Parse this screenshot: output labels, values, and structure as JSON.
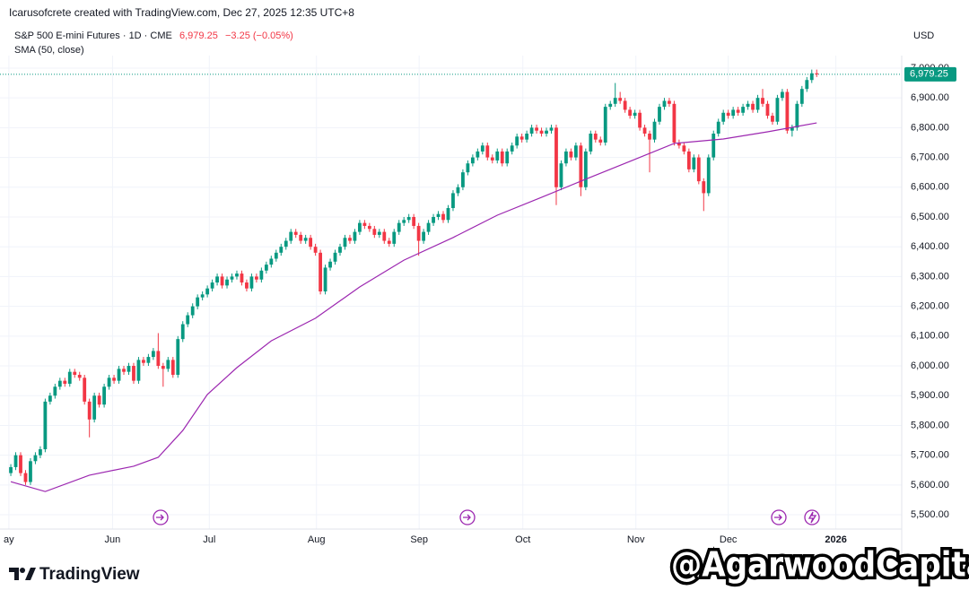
{
  "chart_data": {
    "type": "candlestick",
    "credit": "Icarusofcrete created with TradingView.com, Dec 27, 2025 12:35 UTC+8",
    "title": "S&P 500 E-mini Futures · 1D · CME",
    "last_price": {
      "value": 6979.25,
      "label": "6,979.25"
    },
    "change": {
      "value": -3.25,
      "label": "−3.25 (−0.05%)"
    },
    "currency": "USD",
    "logo": "TradingView",
    "watermark": "@AgarwoodCapital",
    "up_color": "#089981",
    "down_color": "#f23645",
    "grid": true,
    "xlim": [
      -2.2,
      181.3
    ],
    "xticks": [
      {
        "value": -0.4,
        "label": "ay"
      },
      {
        "value": 20.7,
        "label": "Jun"
      },
      {
        "value": 40.4,
        "label": "Jul"
      },
      {
        "value": 62.2,
        "label": "Aug"
      },
      {
        "value": 83.1,
        "label": "Sep"
      },
      {
        "value": 104.2,
        "label": "Oct"
      },
      {
        "value": 127.2,
        "label": "Nov"
      },
      {
        "value": 146,
        "label": "Dec"
      },
      {
        "value": 167.9,
        "label": "2026"
      }
    ],
    "ylim": [
      5452,
      7042
    ],
    "yticks": [
      {
        "value": 5500,
        "label": "5,500.00"
      },
      {
        "value": 5600,
        "label": "5,600.00"
      },
      {
        "value": 5700,
        "label": "5,700.00"
      },
      {
        "value": 5800,
        "label": "5,800.00"
      },
      {
        "value": 5900,
        "label": "5,900.00"
      },
      {
        "value": 6000,
        "label": "6,000.00"
      },
      {
        "value": 6100,
        "label": "6,100.00"
      },
      {
        "value": 6200,
        "label": "6,200.00"
      },
      {
        "value": 6300,
        "label": "6,300.00"
      },
      {
        "value": 6400,
        "label": "6,400.00"
      },
      {
        "value": 6500,
        "label": "6,500.00"
      },
      {
        "value": 6600,
        "label": "6,600.00"
      },
      {
        "value": 6700,
        "label": "6,700.00"
      },
      {
        "value": 6800,
        "label": "6,800.00"
      },
      {
        "value": 6900,
        "label": "6,900.00"
      },
      {
        "value": 7000,
        "label": "7,000.00"
      }
    ],
    "open": [
      5640,
      5660,
      5700,
      5640,
      5610,
      5680,
      5700,
      5720,
      5880,
      5900,
      5930,
      5950,
      5940,
      5980,
      5970,
      5960,
      5880,
      5820,
      5900,
      5870,
      5930,
      5960,
      5950,
      5990,
      5980,
      6000,
      5950,
      6020,
      6010,
      6030,
      6050,
      6000,
      5990,
      6020,
      5970,
      6090,
      6140,
      6170,
      6200,
      6230,
      6240,
      6260,
      6280,
      6300,
      6270,
      6290,
      6300,
      6310,
      6280,
      6260,
      6300,
      6290,
      6320,
      6340,
      6360,
      6380,
      6400,
      6420,
      6450,
      6440,
      6420,
      6430,
      6400,
      6380,
      6250,
      6330,
      6350,
      6380,
      6400,
      6430,
      6420,
      6450,
      6480,
      6470,
      6460,
      6440,
      6450,
      6420,
      6410,
      6450,
      6480,
      6490,
      6500,
      6470,
      6420,
      6450,
      6480,
      6500,
      6510,
      6490,
      6530,
      6580,
      6600,
      6650,
      6680,
      6700,
      6720,
      6740,
      6700,
      6690,
      6720,
      6680,
      6720,
      6740,
      6770,
      6760,
      6780,
      6800,
      6790,
      6780,
      6790,
      6800,
      6600,
      6680,
      6720,
      6700,
      6740,
      6600,
      6720,
      6780,
      6760,
      6750,
      6870,
      6880,
      6900,
      6890,
      6860,
      6840,
      6850,
      6800,
      6780,
      6760,
      6820,
      6870,
      6890,
      6880,
      6750,
      6740,
      6720,
      6660,
      6700,
      6620,
      6580,
      6700,
      6780,
      6820,
      6850,
      6840,
      6860,
      6850,
      6870,
      6880,
      6860,
      6900,
      6880,
      6840,
      6820,
      6900,
      6920,
      6790,
      6800,
      6880,
      6930,
      6960,
      6982.5
    ],
    "high": [
      5670,
      5710,
      5710,
      5650,
      5690,
      5710,
      5730,
      5890,
      5910,
      5940,
      5960,
      5960,
      5990,
      5990,
      5980,
      5970,
      5890,
      5910,
      5910,
      5940,
      5970,
      5970,
      6000,
      6000,
      6010,
      6010,
      6030,
      6030,
      6040,
      6060,
      6110,
      6010,
      6030,
      6030,
      6100,
      6150,
      6180,
      6210,
      6240,
      6250,
      6270,
      6290,
      6310,
      6310,
      6300,
      6310,
      6320,
      6320,
      6290,
      6310,
      6310,
      6330,
      6350,
      6370,
      6390,
      6410,
      6430,
      6460,
      6460,
      6450,
      6440,
      6440,
      6410,
      6390,
      6340,
      6360,
      6390,
      6410,
      6440,
      6440,
      6460,
      6490,
      6490,
      6480,
      6470,
      6460,
      6460,
      6430,
      6460,
      6490,
      6500,
      6510,
      6510,
      6480,
      6460,
      6490,
      6510,
      6520,
      6520,
      6540,
      6590,
      6610,
      6660,
      6690,
      6710,
      6730,
      6750,
      6750,
      6710,
      6730,
      6730,
      6730,
      6750,
      6780,
      6780,
      6790,
      6810,
      6810,
      6800,
      6800,
      6810,
      6810,
      6690,
      6730,
      6730,
      6750,
      6750,
      6730,
      6790,
      6790,
      6770,
      6880,
      6890,
      6950,
      6920,
      6900,
      6870,
      6860,
      6860,
      6810,
      6790,
      6830,
      6880,
      6900,
      6900,
      6890,
      6760,
      6750,
      6730,
      6710,
      6710,
      6630,
      6710,
      6790,
      6830,
      6860,
      6860,
      6870,
      6870,
      6880,
      6890,
      6890,
      6910,
      6930,
      6890,
      6850,
      6910,
      6930,
      6930,
      6810,
      6890,
      6940,
      6970,
      6995,
      6995
    ],
    "low": [
      5630,
      5650,
      5630,
      5600,
      5600,
      5670,
      5690,
      5710,
      5870,
      5890,
      5920,
      5930,
      5930,
      5960,
      5950,
      5870,
      5760,
      5810,
      5860,
      5860,
      5920,
      5940,
      5940,
      5970,
      5970,
      5940,
      5940,
      6000,
      6000,
      6020,
      5990,
      5930,
      5980,
      5960,
      5960,
      6080,
      6130,
      6160,
      6190,
      6220,
      6230,
      6250,
      6270,
      6260,
      6260,
      6280,
      6290,
      6270,
      6250,
      6250,
      6280,
      6280,
      6310,
      6330,
      6350,
      6370,
      6390,
      6410,
      6430,
      6410,
      6410,
      6390,
      6370,
      6240,
      6240,
      6320,
      6340,
      6370,
      6390,
      6410,
      6410,
      6440,
      6460,
      6450,
      6430,
      6430,
      6410,
      6400,
      6400,
      6440,
      6470,
      6480,
      6460,
      6370,
      6410,
      6440,
      6470,
      6490,
      6480,
      6480,
      6520,
      6570,
      6590,
      6640,
      6670,
      6690,
      6710,
      6690,
      6680,
      6680,
      6670,
      6670,
      6710,
      6730,
      6750,
      6750,
      6770,
      6780,
      6770,
      6770,
      6780,
      6540,
      6590,
      6670,
      6690,
      6690,
      6570,
      6590,
      6710,
      6750,
      6740,
      6740,
      6860,
      6870,
      6880,
      6850,
      6830,
      6830,
      6790,
      6770,
      6650,
      6750,
      6810,
      6860,
      6870,
      6740,
      6730,
      6710,
      6650,
      6650,
      6610,
      6520,
      6570,
      6690,
      6770,
      6810,
      6830,
      6830,
      6840,
      6840,
      6860,
      6850,
      6850,
      6870,
      6830,
      6810,
      6810,
      6890,
      6780,
      6770,
      6790,
      6870,
      6920,
      6950,
      6970
    ],
    "close": [
      5660,
      5700,
      5640,
      5610,
      5680,
      5700,
      5720,
      5880,
      5900,
      5930,
      5950,
      5940,
      5980,
      5970,
      5960,
      5880,
      5820,
      5900,
      5870,
      5930,
      5960,
      5950,
      5990,
      5980,
      6000,
      5950,
      6020,
      6010,
      6030,
      6050,
      6000,
      5990,
      6020,
      5970,
      6090,
      6140,
      6170,
      6200,
      6230,
      6240,
      6260,
      6280,
      6300,
      6270,
      6290,
      6300,
      6310,
      6280,
      6260,
      6300,
      6290,
      6320,
      6340,
      6360,
      6380,
      6400,
      6420,
      6450,
      6440,
      6420,
      6430,
      6400,
      6380,
      6250,
      6330,
      6350,
      6380,
      6400,
      6430,
      6420,
      6450,
      6480,
      6470,
      6460,
      6440,
      6450,
      6420,
      6410,
      6450,
      6480,
      6490,
      6500,
      6470,
      6420,
      6450,
      6480,
      6500,
      6510,
      6490,
      6530,
      6580,
      6600,
      6650,
      6680,
      6700,
      6720,
      6740,
      6700,
      6690,
      6720,
      6680,
      6720,
      6740,
      6770,
      6760,
      6780,
      6800,
      6790,
      6780,
      6790,
      6800,
      6600,
      6680,
      6720,
      6700,
      6740,
      6600,
      6720,
      6780,
      6760,
      6750,
      6870,
      6880,
      6900,
      6890,
      6860,
      6840,
      6850,
      6800,
      6780,
      6760,
      6820,
      6870,
      6890,
      6880,
      6750,
      6740,
      6720,
      6660,
      6700,
      6620,
      6580,
      6700,
      6780,
      6820,
      6850,
      6840,
      6860,
      6850,
      6870,
      6880,
      6860,
      6900,
      6880,
      6840,
      6820,
      6900,
      6920,
      6790,
      6800,
      6880,
      6930,
      6960,
      6982.5,
      6979.25
    ],
    "series": [
      {
        "name": "SMA (50, close)",
        "color": "#9c27b0",
        "x": [
          0,
          7,
          16,
          25,
          30,
          35,
          40,
          46,
          53,
          62,
          71,
          80,
          90,
          99,
          108,
          117,
          126,
          135,
          145,
          154,
          164
        ],
        "values": [
          5611,
          5578,
          5633,
          5663,
          5693,
          5783,
          5904,
          5994,
          6084,
          6160,
          6265,
          6355,
          6431,
          6506,
          6566,
          6627,
          6687,
          6747,
          6762,
          6786,
          6816
        ]
      }
    ]
  }
}
